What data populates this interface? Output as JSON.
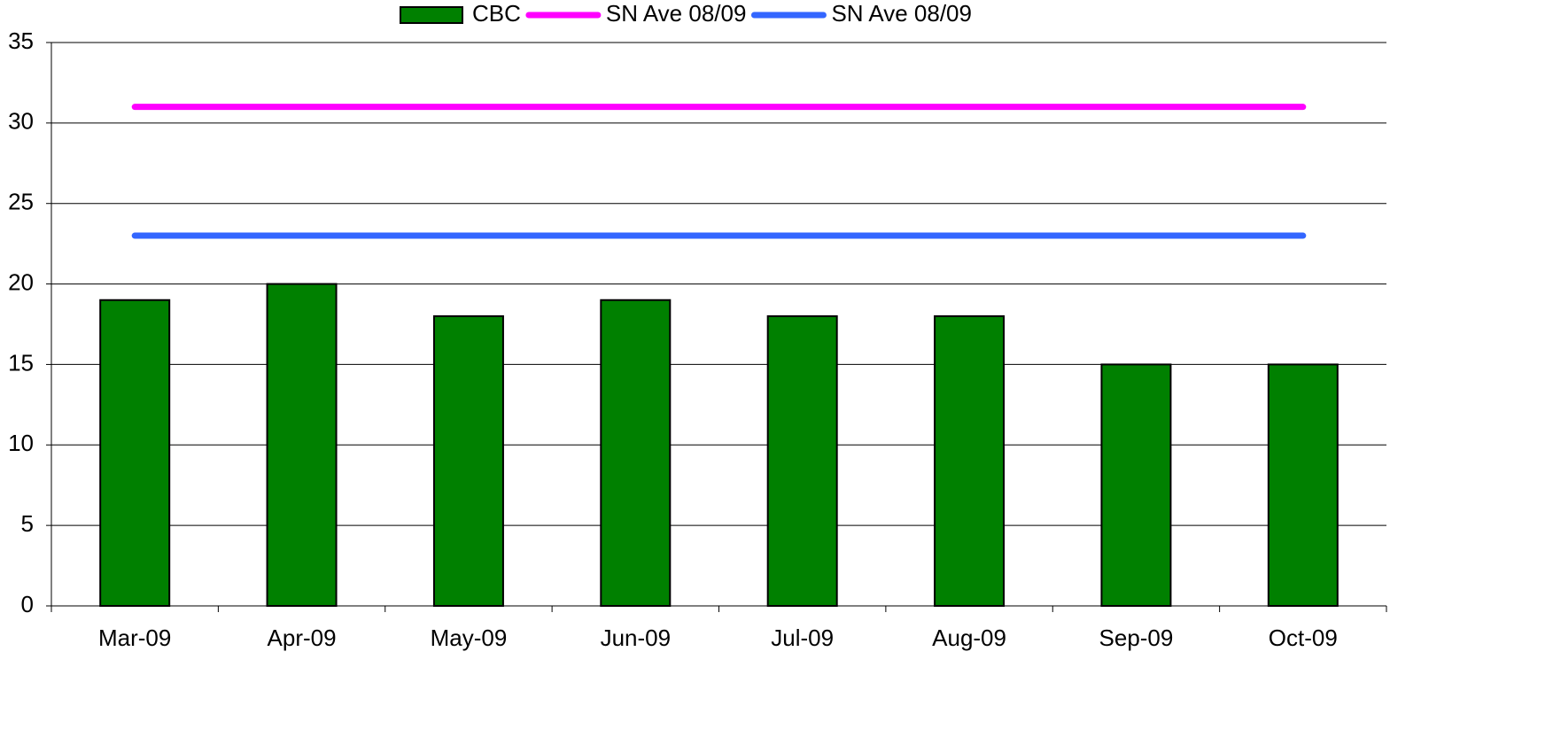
{
  "chart_data": {
    "type": "bar",
    "categories": [
      "Mar-09",
      "Apr-09",
      "May-09",
      "Jun-09",
      "Jul-09",
      "Aug-09",
      "Sep-09",
      "Oct-09"
    ],
    "series": [
      {
        "name": "CBC",
        "type": "bar",
        "color": "#008000",
        "values": [
          19,
          20,
          18,
          19,
          18,
          18,
          15,
          15
        ]
      },
      {
        "name": "SN Ave 08/09",
        "type": "line",
        "color": "#ff00ff",
        "values": [
          31,
          31,
          31,
          31,
          31,
          31,
          31,
          31
        ]
      },
      {
        "name": "SN Ave 08/09",
        "type": "line",
        "color": "#3366ff",
        "values": [
          23,
          23,
          23,
          23,
          23,
          23,
          23,
          23
        ]
      }
    ],
    "ylim": [
      0,
      35
    ],
    "yticks": [
      0,
      5,
      10,
      15,
      20,
      25,
      30,
      35
    ],
    "grid": true,
    "legend": "top"
  }
}
